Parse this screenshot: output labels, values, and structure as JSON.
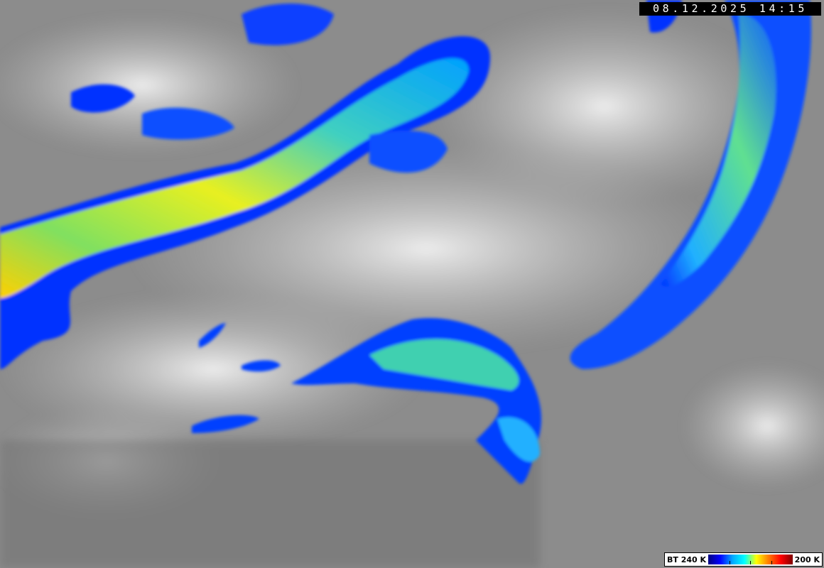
{
  "timestamp": "08.12.2025 14:15",
  "legend": {
    "min_label": "BT 240 K",
    "max_label": "200 K",
    "colors": [
      "#000080",
      "#0000ff",
      "#00aaff",
      "#00ffff",
      "#ffff00",
      "#ff8000",
      "#ff0000",
      "#800000"
    ]
  }
}
